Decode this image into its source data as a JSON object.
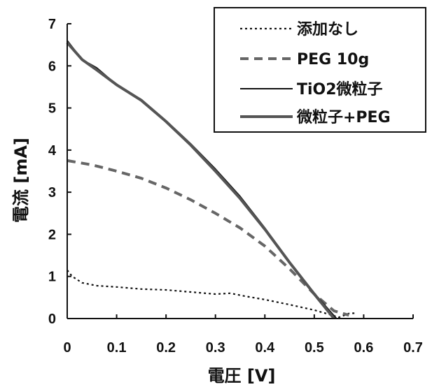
{
  "chart_data": {
    "type": "line",
    "xlabel": "電圧 [V]",
    "ylabel": "電流 [mA]",
    "xlim": [
      0,
      0.7
    ],
    "ylim": [
      0,
      7
    ],
    "x_ticks": [
      "0",
      "0.1",
      "0.2",
      "0.3",
      "0.4",
      "0.5",
      "0.6",
      "0.7"
    ],
    "y_ticks": [
      "0",
      "1",
      "2",
      "3",
      "4",
      "5",
      "6",
      "7"
    ],
    "grid": false,
    "legend_position": "top-right",
    "series": [
      {
        "name": "添加なし",
        "style": "dotted",
        "color": "#111111",
        "points": [
          [
            0,
            1.15
          ],
          [
            0.01,
            1.0
          ],
          [
            0.03,
            0.85
          ],
          [
            0.06,
            0.78
          ],
          [
            0.1,
            0.75
          ],
          [
            0.15,
            0.7
          ],
          [
            0.2,
            0.68
          ],
          [
            0.25,
            0.63
          ],
          [
            0.3,
            0.58
          ],
          [
            0.33,
            0.6
          ],
          [
            0.36,
            0.53
          ],
          [
            0.4,
            0.45
          ],
          [
            0.45,
            0.33
          ],
          [
            0.5,
            0.2
          ],
          [
            0.53,
            0.1
          ],
          [
            0.55,
            0.03
          ],
          [
            0.57,
            0.12
          ],
          [
            0.585,
            0.13
          ]
        ]
      },
      {
        "name": "PEG 10g",
        "style": "dashed",
        "color": "#666666",
        "points": [
          [
            0,
            3.75
          ],
          [
            0.05,
            3.65
          ],
          [
            0.1,
            3.5
          ],
          [
            0.15,
            3.33
          ],
          [
            0.2,
            3.1
          ],
          [
            0.25,
            2.82
          ],
          [
            0.3,
            2.5
          ],
          [
            0.35,
            2.15
          ],
          [
            0.4,
            1.72
          ],
          [
            0.45,
            1.18
          ],
          [
            0.5,
            0.58
          ],
          [
            0.54,
            0.18
          ],
          [
            0.57,
            0.08
          ]
        ]
      },
      {
        "name": "TiO2微粒子",
        "style": "solid",
        "color": "#111111",
        "points": [
          [
            0,
            6.6
          ],
          [
            0.03,
            6.15
          ],
          [
            0.06,
            5.95
          ],
          [
            0.1,
            5.55
          ],
          [
            0.15,
            5.2
          ],
          [
            0.2,
            4.7
          ],
          [
            0.25,
            4.15
          ],
          [
            0.3,
            3.55
          ],
          [
            0.35,
            2.9
          ],
          [
            0.4,
            2.15
          ],
          [
            0.45,
            1.35
          ],
          [
            0.5,
            0.6
          ],
          [
            0.545,
            0.0
          ]
        ]
      },
      {
        "name": "微粒子+PEG",
        "style": "solid-thick",
        "color": "#555555",
        "points": [
          [
            0,
            6.55
          ],
          [
            0.03,
            6.15
          ],
          [
            0.06,
            5.9
          ],
          [
            0.1,
            5.55
          ],
          [
            0.15,
            5.18
          ],
          [
            0.2,
            4.68
          ],
          [
            0.25,
            4.12
          ],
          [
            0.3,
            3.5
          ],
          [
            0.35,
            2.85
          ],
          [
            0.4,
            2.12
          ],
          [
            0.45,
            1.33
          ],
          [
            0.5,
            0.58
          ],
          [
            0.54,
            0.0
          ]
        ]
      }
    ]
  }
}
